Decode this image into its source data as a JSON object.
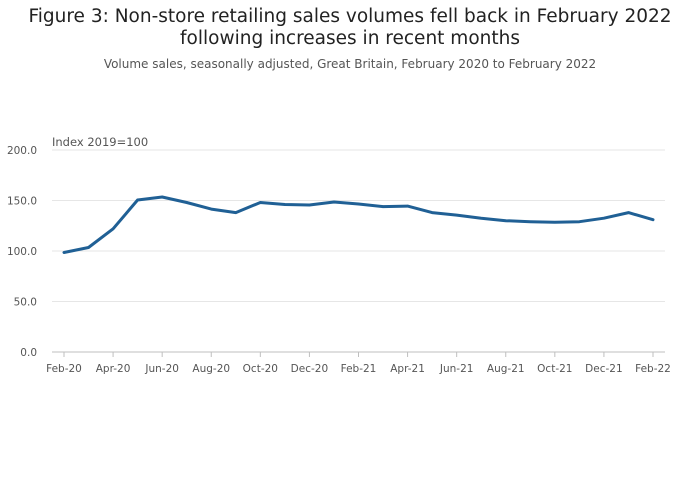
{
  "title_line1": "Figure 3: Non-store retailing sales volumes fell back in February 2022",
  "title_line2": "following increases in recent months",
  "subtitle": "Volume sales, seasonally adjusted, Great Britain, February 2020 to February 2022",
  "colors": {
    "line": "#206095",
    "grid": "#e6e6e6",
    "axis": "#bfbfbf"
  },
  "chart_data": {
    "type": "line",
    "ylabel": "Index 2019=100",
    "ylim": [
      0,
      200
    ],
    "yticks": [
      0,
      50,
      100,
      150,
      200
    ],
    "ytick_labels": [
      "0.0",
      "50.0",
      "100.0",
      "150.0",
      "200.0"
    ],
    "xtick_labels": [
      "Feb-20",
      "Apr-20",
      "Jun-20",
      "Aug-20",
      "Oct-20",
      "Dec-20",
      "Feb-21",
      "Apr-21",
      "Jun-21",
      "Aug-21",
      "Oct-21",
      "Dec-21",
      "Feb-22"
    ],
    "x": [
      "Feb-20",
      "Mar-20",
      "Apr-20",
      "May-20",
      "Jun-20",
      "Jul-20",
      "Aug-20",
      "Sep-20",
      "Oct-20",
      "Nov-20",
      "Dec-20",
      "Jan-21",
      "Feb-21",
      "Mar-21",
      "Apr-21",
      "May-21",
      "Jun-21",
      "Jul-21",
      "Aug-21",
      "Sep-21",
      "Oct-21",
      "Nov-21",
      "Dec-21",
      "Jan-22",
      "Feb-22"
    ],
    "series": [
      {
        "values": [
          98.5,
          103.5,
          122,
          150.5,
          153.5,
          148,
          141.5,
          138,
          148,
          146,
          145.5,
          148.5,
          146.5,
          144,
          144.5,
          138,
          135.5,
          132.5,
          130,
          129,
          128.5,
          129,
          132.5,
          138,
          131
        ]
      }
    ],
    "grid": true,
    "legend": "none"
  }
}
